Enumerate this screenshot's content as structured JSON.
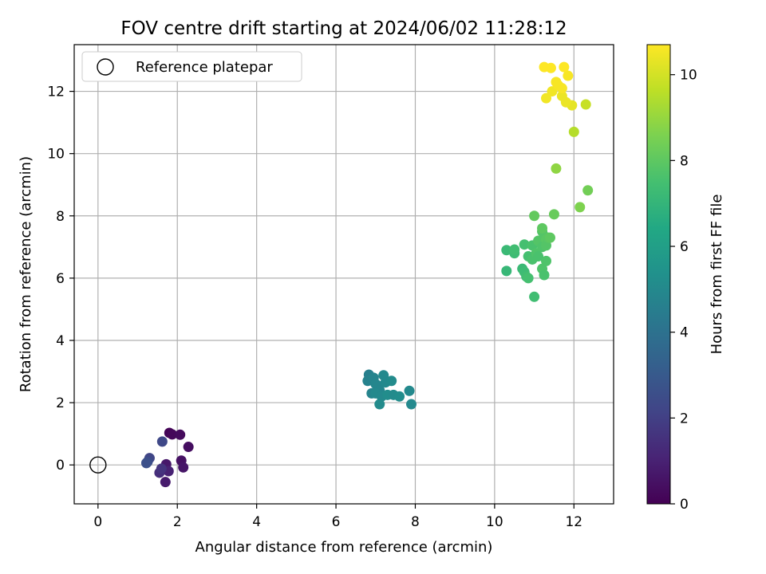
{
  "chart_data": {
    "type": "scatter",
    "title": "FOV centre drift starting at 2024/06/02 11:28:12",
    "xlabel": "Angular distance from reference (arcmin)",
    "ylabel": "Rotation from reference (arcmin)",
    "xlim": [
      -0.6,
      13.0
    ],
    "ylim": [
      -1.25,
      13.5
    ],
    "xticks": [
      0,
      2,
      4,
      6,
      8,
      10,
      12
    ],
    "yticks": [
      0,
      2,
      4,
      6,
      8,
      10,
      12
    ],
    "grid": true,
    "legend": {
      "position": "top-left",
      "entries": [
        "Reference platepar"
      ]
    },
    "reference_point": {
      "x": 0,
      "y": 0,
      "label": "Reference platepar"
    },
    "colorbar": {
      "label": "Hours from first FF file",
      "colormap": "viridis",
      "range": [
        0,
        10.7
      ],
      "ticks": [
        0,
        2,
        4,
        6,
        8,
        10
      ]
    },
    "points": [
      {
        "x": 1.8,
        "y": 1.03,
        "h": 0.1
      },
      {
        "x": 1.87,
        "y": 0.98,
        "h": 0.2
      },
      {
        "x": 2.07,
        "y": 0.97,
        "h": 0.3
      },
      {
        "x": 2.28,
        "y": 0.58,
        "h": 0.4
      },
      {
        "x": 2.1,
        "y": 0.14,
        "h": 0.5
      },
      {
        "x": 2.15,
        "y": -0.08,
        "h": 0.6
      },
      {
        "x": 1.72,
        "y": 0.02,
        "h": 0.7
      },
      {
        "x": 1.7,
        "y": -0.55,
        "h": 0.8
      },
      {
        "x": 1.78,
        "y": -0.2,
        "h": 1.0
      },
      {
        "x": 1.55,
        "y": -0.25,
        "h": 1.4
      },
      {
        "x": 1.6,
        "y": -0.12,
        "h": 1.6
      },
      {
        "x": 1.62,
        "y": 0.75,
        "h": 2.3
      },
      {
        "x": 1.3,
        "y": 0.22,
        "h": 2.2
      },
      {
        "x": 1.25,
        "y": 0.1,
        "h": 2.5
      },
      {
        "x": 1.22,
        "y": 0.06,
        "h": 2.6
      },
      {
        "x": 6.83,
        "y": 2.9,
        "h": 4.6
      },
      {
        "x": 6.8,
        "y": 2.7,
        "h": 4.7
      },
      {
        "x": 6.95,
        "y": 2.8,
        "h": 4.8
      },
      {
        "x": 7.05,
        "y": 2.55,
        "h": 4.9
      },
      {
        "x": 6.9,
        "y": 2.3,
        "h": 4.8
      },
      {
        "x": 7.0,
        "y": 2.6,
        "h": 4.9
      },
      {
        "x": 7.2,
        "y": 2.88,
        "h": 5.0
      },
      {
        "x": 7.25,
        "y": 2.65,
        "h": 5.0
      },
      {
        "x": 7.4,
        "y": 2.7,
        "h": 5.1
      },
      {
        "x": 7.1,
        "y": 2.4,
        "h": 4.9
      },
      {
        "x": 7.0,
        "y": 2.3,
        "h": 5.0
      },
      {
        "x": 7.15,
        "y": 2.2,
        "h": 5.0
      },
      {
        "x": 7.3,
        "y": 2.25,
        "h": 5.2
      },
      {
        "x": 7.45,
        "y": 2.25,
        "h": 5.1
      },
      {
        "x": 7.6,
        "y": 2.2,
        "h": 5.2
      },
      {
        "x": 7.1,
        "y": 1.95,
        "h": 5.1
      },
      {
        "x": 7.85,
        "y": 2.38,
        "h": 5.0
      },
      {
        "x": 7.9,
        "y": 1.95,
        "h": 5.0
      },
      {
        "x": 11.0,
        "y": 5.4,
        "h": 7.4
      },
      {
        "x": 10.3,
        "y": 6.23,
        "h": 7.1
      },
      {
        "x": 10.3,
        "y": 6.9,
        "h": 7.2
      },
      {
        "x": 10.5,
        "y": 6.8,
        "h": 7.3
      },
      {
        "x": 10.5,
        "y": 6.92,
        "h": 7.4
      },
      {
        "x": 10.75,
        "y": 7.08,
        "h": 7.5
      },
      {
        "x": 10.7,
        "y": 6.3,
        "h": 7.2
      },
      {
        "x": 10.75,
        "y": 6.2,
        "h": 7.3
      },
      {
        "x": 10.8,
        "y": 6.05,
        "h": 7.4
      },
      {
        "x": 10.85,
        "y": 6.0,
        "h": 7.5
      },
      {
        "x": 10.85,
        "y": 6.7,
        "h": 7.5
      },
      {
        "x": 10.95,
        "y": 7.05,
        "h": 7.6
      },
      {
        "x": 10.95,
        "y": 6.6,
        "h": 7.6
      },
      {
        "x": 11.05,
        "y": 6.8,
        "h": 7.7
      },
      {
        "x": 11.1,
        "y": 6.7,
        "h": 7.6
      },
      {
        "x": 11.1,
        "y": 7.2,
        "h": 7.8
      },
      {
        "x": 11.2,
        "y": 7.5,
        "h": 7.8
      },
      {
        "x": 11.2,
        "y": 7.0,
        "h": 7.7
      },
      {
        "x": 11.25,
        "y": 7.35,
        "h": 7.8
      },
      {
        "x": 11.3,
        "y": 7.25,
        "h": 7.9
      },
      {
        "x": 11.3,
        "y": 7.05,
        "h": 7.8
      },
      {
        "x": 11.35,
        "y": 7.3,
        "h": 7.9
      },
      {
        "x": 11.4,
        "y": 7.3,
        "h": 8.0
      },
      {
        "x": 11.2,
        "y": 6.3,
        "h": 7.7
      },
      {
        "x": 11.25,
        "y": 6.1,
        "h": 7.6
      },
      {
        "x": 11.3,
        "y": 6.55,
        "h": 7.7
      },
      {
        "x": 11.0,
        "y": 8.0,
        "h": 8.1
      },
      {
        "x": 11.2,
        "y": 7.6,
        "h": 8.0
      },
      {
        "x": 11.5,
        "y": 8.05,
        "h": 8.2
      },
      {
        "x": 12.15,
        "y": 8.28,
        "h": 8.6
      },
      {
        "x": 12.35,
        "y": 8.82,
        "h": 8.4
      },
      {
        "x": 11.55,
        "y": 9.52,
        "h": 8.9
      },
      {
        "x": 12.0,
        "y": 10.7,
        "h": 9.5
      },
      {
        "x": 12.3,
        "y": 11.58,
        "h": 9.8
      },
      {
        "x": 11.95,
        "y": 11.55,
        "h": 10.3
      },
      {
        "x": 11.8,
        "y": 11.65,
        "h": 10.4
      },
      {
        "x": 11.7,
        "y": 11.85,
        "h": 10.4
      },
      {
        "x": 11.3,
        "y": 11.78,
        "h": 10.5
      },
      {
        "x": 11.45,
        "y": 12.0,
        "h": 10.5
      },
      {
        "x": 11.6,
        "y": 12.2,
        "h": 10.6
      },
      {
        "x": 11.7,
        "y": 12.1,
        "h": 10.6
      },
      {
        "x": 11.55,
        "y": 12.3,
        "h": 10.6
      },
      {
        "x": 11.85,
        "y": 12.5,
        "h": 10.6
      },
      {
        "x": 11.25,
        "y": 12.78,
        "h": 10.7
      },
      {
        "x": 11.42,
        "y": 12.75,
        "h": 10.7
      },
      {
        "x": 11.75,
        "y": 12.78,
        "h": 10.7
      }
    ]
  }
}
